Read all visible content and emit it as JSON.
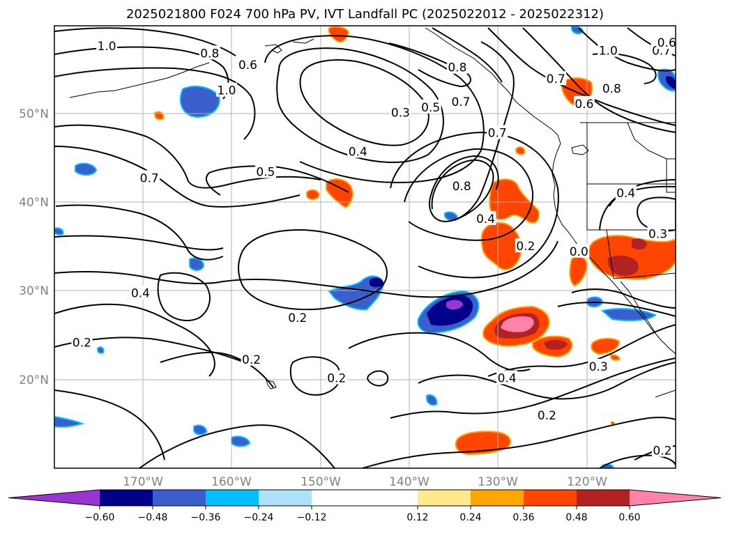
{
  "title": "2025021800 F024 700 hPa PV, IVT Landfall PC (2025022012 - 2025022312)",
  "chart_data": {
    "type": "map",
    "map_extent": {
      "lon": [
        -180,
        -110
      ],
      "lat": [
        10,
        60
      ]
    },
    "lat_ticks": [
      "20°N",
      "30°N",
      "40°N",
      "50°N"
    ],
    "lon_ticks": [
      "170°W",
      "160°W",
      "150°W",
      "140°W",
      "130°W",
      "120°W"
    ],
    "grid": true,
    "contour_labels": [
      {
        "text": "1.0",
        "lon": -174.1,
        "lat": 57.7
      },
      {
        "text": "0.8",
        "lon": -162.5,
        "lat": 56.9
      },
      {
        "text": "0.6",
        "lon": -158.2,
        "lat": 55.6
      },
      {
        "text": "1.0",
        "lon": -160.6,
        "lat": 52.7
      },
      {
        "text": "0.3",
        "lon": -141.0,
        "lat": 50.2
      },
      {
        "text": "0.5",
        "lon": -137.6,
        "lat": 50.8
      },
      {
        "text": "0.7",
        "lon": -134.2,
        "lat": 51.4
      },
      {
        "text": "0.4",
        "lon": -145.8,
        "lat": 45.8
      },
      {
        "text": "0.5",
        "lon": -156.2,
        "lat": 43.5
      },
      {
        "text": "0.7",
        "lon": -169.3,
        "lat": 42.8
      },
      {
        "text": "0.8",
        "lon": -134.6,
        "lat": 55.3
      },
      {
        "text": "0.6",
        "lon": -120.3,
        "lat": 51.2
      },
      {
        "text": "0.7",
        "lon": -123.5,
        "lat": 54.0
      },
      {
        "text": "0.8",
        "lon": -117.2,
        "lat": 52.9
      },
      {
        "text": "1.0",
        "lon": -117.6,
        "lat": 57.2
      },
      {
        "text": "0.7",
        "lon": -111.6,
        "lat": 57.2
      },
      {
        "text": "0.6",
        "lon": -111.0,
        "lat": 58.1
      },
      {
        "text": "0.7",
        "lon": -130.1,
        "lat": 47.9
      },
      {
        "text": "0.8",
        "lon": -134.1,
        "lat": 41.9
      },
      {
        "text": "0.4",
        "lon": -131.4,
        "lat": 38.2
      },
      {
        "text": "0.2",
        "lon": -126.9,
        "lat": 35.1
      },
      {
        "text": "0.0",
        "lon": -120.9,
        "lat": 34.5
      },
      {
        "text": "0.4",
        "lon": -115.6,
        "lat": 41.1
      },
      {
        "text": "0.3",
        "lon": -112.0,
        "lat": 36.5
      },
      {
        "text": "0.4",
        "lon": -170.3,
        "lat": 29.8
      },
      {
        "text": "0.2",
        "lon": -152.6,
        "lat": 27.0
      },
      {
        "text": "0.2",
        "lon": -176.9,
        "lat": 24.2
      },
      {
        "text": "0.2",
        "lon": -157.8,
        "lat": 22.3
      },
      {
        "text": "0.2",
        "lon": -148.2,
        "lat": 20.2
      },
      {
        "text": "0.4",
        "lon": -129.0,
        "lat": 20.2
      },
      {
        "text": "0.2",
        "lon": -124.5,
        "lat": 16.0
      },
      {
        "text": "0.3",
        "lon": -118.7,
        "lat": 21.5
      },
      {
        "text": "0.2",
        "lon": -111.5,
        "lat": 12.0
      }
    ],
    "colorbar": {
      "levels": [
        -0.72,
        -0.6,
        -0.48,
        -0.36,
        -0.24,
        -0.12,
        0.12,
        0.24,
        0.36,
        0.48,
        0.6,
        0.72
      ],
      "tick_labels": [
        "−0.60",
        "−0.48",
        "−0.36",
        "−0.24",
        "−0.12",
        "0.12",
        "0.24",
        "0.36",
        "0.48",
        "0.60"
      ],
      "colors": [
        "#9a35d1",
        "#00008b",
        "#3a5fcd",
        "#00bfff",
        "#aee2fa",
        "#ffffff",
        "#ffe98c",
        "#ffa500",
        "#ff4500",
        "#b22222",
        "#ff82ab",
        "#ff82ab"
      ],
      "extend": "both"
    }
  }
}
